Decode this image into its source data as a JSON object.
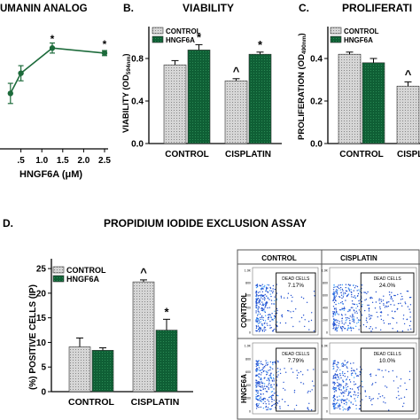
{
  "panelA": {
    "title": "UMANIN ANALOG",
    "xlabel": "HNGF6A (μM)"
  },
  "panelB": {
    "letter": "B.",
    "title": "VIABILITY",
    "ylabel": "VIABILITY (OD",
    "ylabel_sub": "594nm",
    "ylabel_end": ")"
  },
  "panelC": {
    "letter": "C.",
    "title": "PROLIFERATI",
    "ylabel": "PROLIFERATION (OD",
    "ylabel_sub": "490nm",
    "ylabel_end": ")"
  },
  "panelD": {
    "letter": "D.",
    "title": "PROPIDIUM IODIDE EXCLUSION ASSAY",
    "ylabel": "(%) POSITIVE CELLS (IP)"
  },
  "facs": {
    "col_headers": [
      "CONTROL",
      "CISPLATIN"
    ],
    "row_labels": [
      "CONTROL",
      "HNGF6A"
    ],
    "gate_label": "DEAD CELLS",
    "values": [
      "7.17%",
      "24.0%",
      "7.79%",
      "10.0%"
    ],
    "y_ticks": [
      "1.0K",
      "800",
      "600",
      "400",
      "200",
      "0"
    ],
    "colors": {
      "gate": "#000000",
      "dots": "#1f4fd0"
    }
  },
  "legend": {
    "control": "CONTROL",
    "hngf6a": "HNGF6A"
  },
  "colors": {
    "control": "#d8d8d8",
    "hngf6a": "#0f5f35",
    "line": "#1d6b3b"
  },
  "chart_data": [
    {
      "type": "line",
      "title": "UMANIN ANALOG",
      "xlabel": "HNGF6A (μM)",
      "x": [
        0.25,
        0.5,
        1.25,
        2.5
      ],
      "y": [
        0.42,
        0.5,
        0.6,
        0.58
      ],
      "error": [
        0.04,
        0.03,
        0.02,
        0.01
      ],
      "x_ticks": [
        0.5,
        1.0,
        1.5,
        2.0,
        2.5
      ],
      "x_tick_labels": [
        ".5",
        "1.0",
        "1.5",
        "2.0",
        "2.5"
      ],
      "xlim": [
        0,
        2.5
      ],
      "annotations": [
        {
          "x": 1.25,
          "text": "*"
        },
        {
          "x": 2.5,
          "text": "*"
        }
      ]
    },
    {
      "type": "bar",
      "title": "VIABILITY",
      "ylabel": "VIABILITY (OD594nm)",
      "categories": [
        "CONTROL",
        "CISPLATIN"
      ],
      "series": [
        {
          "name": "CONTROL",
          "values": [
            0.74,
            0.59
          ],
          "error": [
            0.04,
            0.02
          ]
        },
        {
          "name": "HNGF6A",
          "values": [
            0.88,
            0.84
          ],
          "error": [
            0.05,
            0.02
          ]
        }
      ],
      "ylim": [
        0,
        1.1
      ],
      "y_ticks": [
        0.0,
        0.4,
        0.8
      ],
      "y_tick_labels": [
        "0.0",
        "0.4",
        "0.8"
      ],
      "annotations": [
        {
          "category": "CONTROL",
          "series": "HNGF6A",
          "text": "*"
        },
        {
          "category": "CISPLATIN",
          "series": "CONTROL",
          "text": "^"
        },
        {
          "category": "CISPLATIN",
          "series": "HNGF6A",
          "text": "*"
        }
      ]
    },
    {
      "type": "bar",
      "title": "PROLIFERATI",
      "ylabel": "PROLIFERATION (OD490nm)",
      "categories": [
        "CONTROL",
        "CISPLATIN"
      ],
      "series": [
        {
          "name": "CONTROL",
          "values": [
            0.42,
            0.27
          ],
          "error": [
            0.01,
            0.02
          ]
        },
        {
          "name": "HNGF6A",
          "values": [
            0.38,
            null
          ],
          "error": [
            0.02,
            null
          ]
        }
      ],
      "ylim": [
        0,
        0.55
      ],
      "y_ticks": [
        0.0,
        0.2,
        0.4
      ],
      "y_tick_labels": [
        "0.0",
        "0.2",
        "0.4"
      ],
      "annotations": [
        {
          "category": "CISPLATIN",
          "series": "CONTROL",
          "text": "^"
        }
      ]
    },
    {
      "type": "bar",
      "title": "PROPIDIUM IODIDE EXCLUSION ASSAY",
      "ylabel": "(%) POSITIVE CELLS (IP)",
      "categories": [
        "CONTROL",
        "CISPLATIN"
      ],
      "series": [
        {
          "name": "CONTROL",
          "values": [
            9.1,
            22.3
          ],
          "error": [
            1.8,
            0.4
          ]
        },
        {
          "name": "HNGF6A",
          "values": [
            8.4,
            12.5
          ],
          "error": [
            0.5,
            2.2
          ]
        }
      ],
      "ylim": [
        0,
        27
      ],
      "y_ticks": [
        0,
        5,
        10,
        15,
        20,
        25
      ],
      "y_tick_labels": [
        "0",
        "5",
        "10",
        "15",
        "20",
        "25"
      ],
      "annotations": [
        {
          "category": "CISPLATIN",
          "series": "CONTROL",
          "text": "^"
        },
        {
          "category": "CISPLATIN",
          "series": "HNGF6A",
          "text": "*"
        }
      ]
    }
  ]
}
